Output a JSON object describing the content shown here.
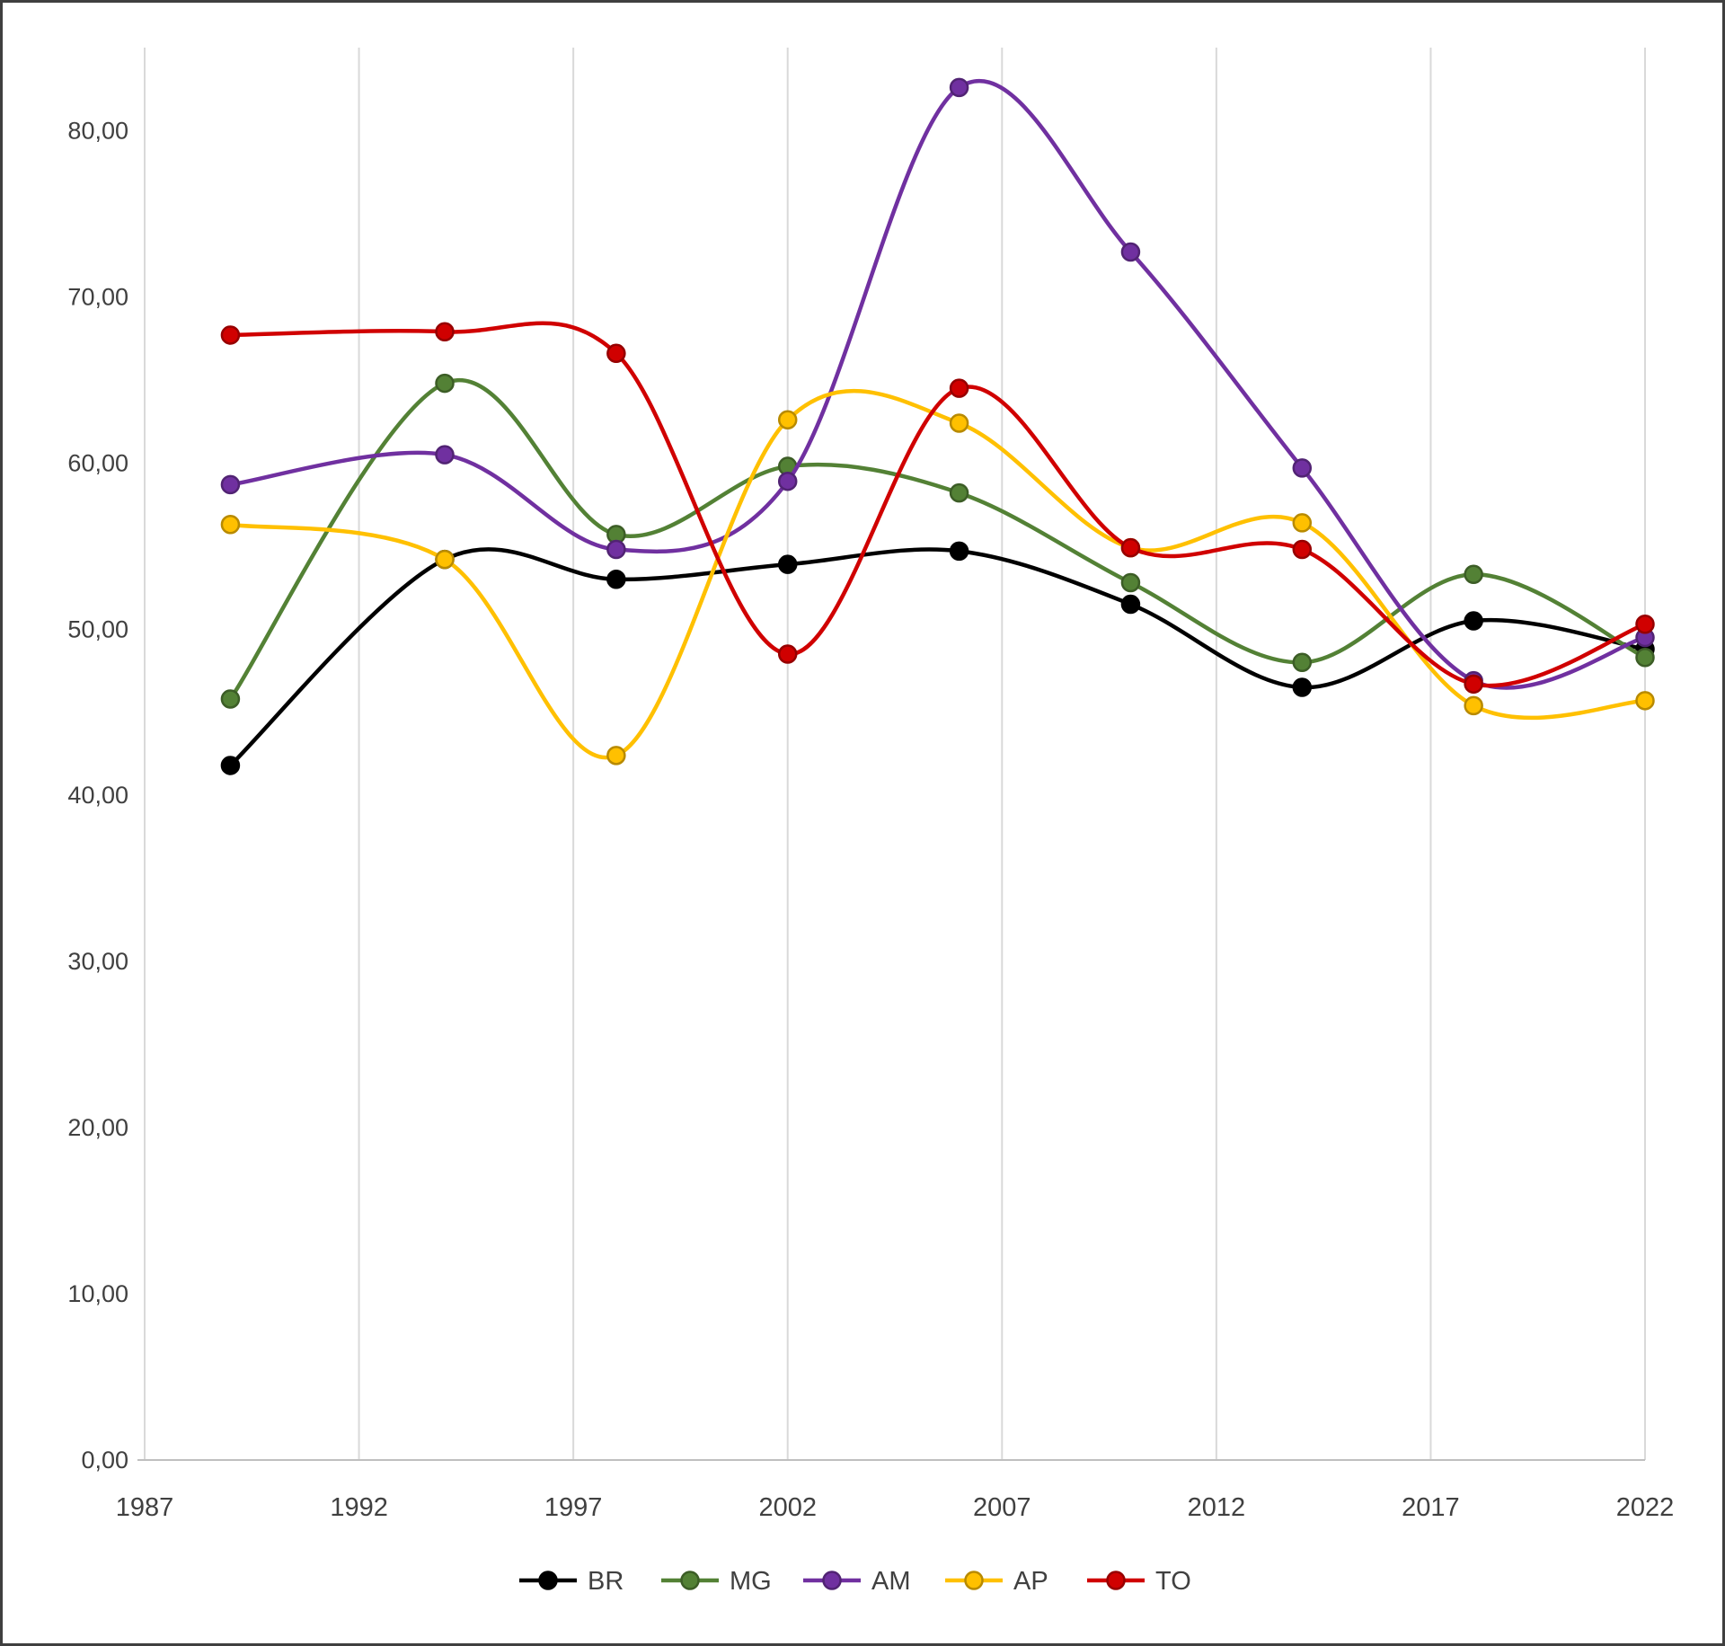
{
  "chart_data": {
    "type": "line",
    "title": "",
    "xlabel": "",
    "ylabel": "",
    "x": [
      1989,
      1994,
      1998,
      2002,
      2006,
      2010,
      2014,
      2018,
      2022
    ],
    "series": [
      {
        "name": "BR",
        "color": "#000000",
        "values": [
          41.8,
          54.2,
          53.0,
          53.9,
          54.7,
          51.5,
          46.5,
          50.5,
          48.8
        ]
      },
      {
        "name": "MG",
        "color": "#538135",
        "values": [
          45.8,
          64.8,
          55.7,
          59.8,
          58.2,
          52.8,
          48.0,
          53.3,
          48.3
        ]
      },
      {
        "name": "AM",
        "color": "#7030A0",
        "values": [
          58.7,
          60.5,
          54.8,
          58.9,
          82.6,
          72.7,
          59.7,
          46.9,
          49.5
        ]
      },
      {
        "name": "AP",
        "color": "#FFC000",
        "values": [
          56.3,
          54.2,
          42.4,
          62.6,
          62.4,
          54.9,
          56.4,
          45.4,
          45.7
        ]
      },
      {
        "name": "TO",
        "color": "#D00000",
        "values": [
          67.7,
          67.9,
          66.6,
          48.5,
          64.5,
          54.9,
          54.8,
          46.7,
          50.3
        ]
      }
    ],
    "x_ticks": {
      "values": [
        1987,
        1992,
        1997,
        2002,
        2007,
        2012,
        2017,
        2022
      ],
      "labels": [
        "1987",
        "1992",
        "1997",
        "2002",
        "2007",
        "2012",
        "2017",
        "2022"
      ]
    },
    "y_ticks": {
      "values": [
        0,
        10,
        20,
        30,
        40,
        50,
        60,
        70,
        80
      ],
      "labels": [
        "0,00",
        "10,00",
        "20,00",
        "30,00",
        "40,00",
        "50,00",
        "60,00",
        "70,00",
        "80,00"
      ]
    },
    "xlim": [
      1987,
      2022
    ],
    "ylim": [
      0,
      85
    ],
    "grid": "vertical",
    "grid_color": "#d9d9d9",
    "axis_color": "#bfbfbf",
    "text_color": "#404040",
    "legend_position": "bottom",
    "legend": [
      "BR",
      "MG",
      "AM",
      "AP",
      "TO"
    ]
  }
}
